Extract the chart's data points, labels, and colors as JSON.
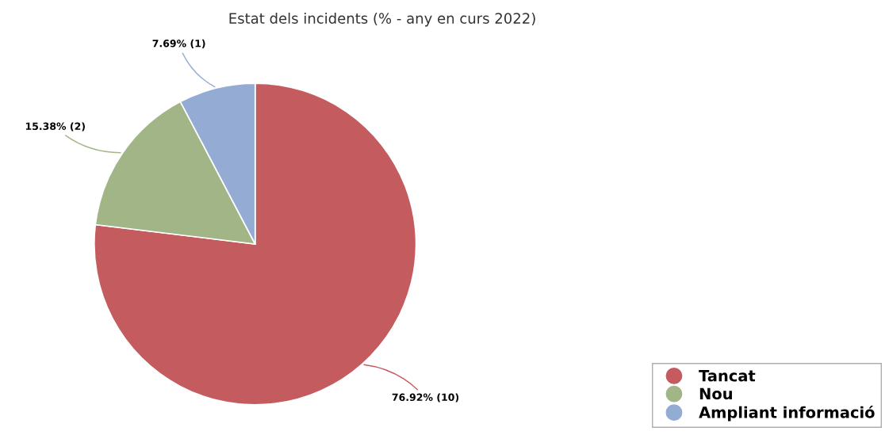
{
  "chart_data": {
    "type": "pie",
    "title": "Estat dels incidents (% - any en curs 2022)",
    "categories": [
      "Tancat",
      "Nou",
      "Ampliant informació"
    ],
    "values": [
      76.92,
      15.38,
      7.69
    ],
    "value_labels": [
      "76.92% (10)",
      "15.38% (2)",
      "7.69% (1)"
    ],
    "colors": [
      "#c45b5e",
      "#a1b587",
      "#94acd4"
    ],
    "legend": "bottom right"
  }
}
